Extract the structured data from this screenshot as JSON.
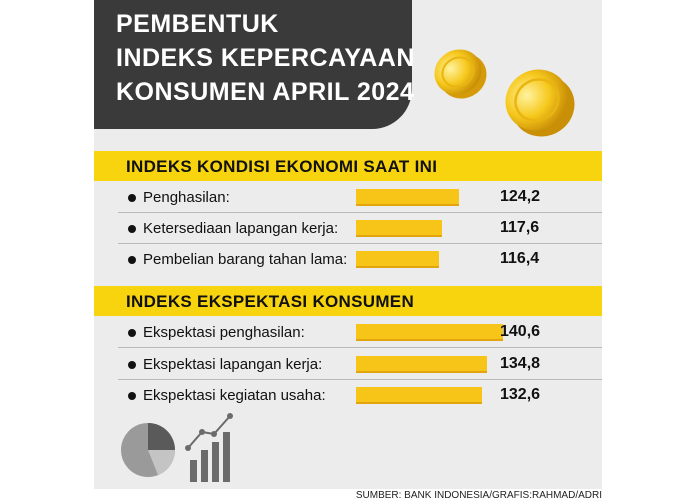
{
  "title_lines": [
    "PEMBENTUK",
    "INDEKS KEPERCAYAAN",
    "KONSUMEN APRIL 2024"
  ],
  "source": "SUMBER: BANK INDONESIA/GRAFIS:RAHMAD/ADRI",
  "colors": {
    "accent": "#f7d40e",
    "bar": "#f7c517",
    "title_bg": "#3a3a3a",
    "panel": "#ececec"
  },
  "icons": [
    "coins-icon",
    "pie-chart-icon",
    "growth-bar-chart-icon"
  ],
  "chart_data": [
    {
      "type": "bar",
      "orientation": "horizontal",
      "title": "INDEKS KONDISI EKONOMI SAAT INI",
      "categories": [
        "Penghasilan:",
        "Ketersediaan lapangan kerja:",
        "Pembelian barang tahan lama:"
      ],
      "values": [
        124.2,
        117.6,
        116.4
      ],
      "value_labels": [
        "124,2",
        "117,6",
        "116,4"
      ]
    },
    {
      "type": "bar",
      "orientation": "horizontal",
      "title": "INDEKS EKSPEKTASI KONSUMEN",
      "categories": [
        "Ekspektasi penghasilan:",
        "Ekspektasi lapangan kerja:",
        "Ekspektasi kegiatan usaha:"
      ],
      "values": [
        140.6,
        134.8,
        132.6
      ],
      "value_labels": [
        "140,6",
        "134,8",
        "132,6"
      ]
    }
  ]
}
